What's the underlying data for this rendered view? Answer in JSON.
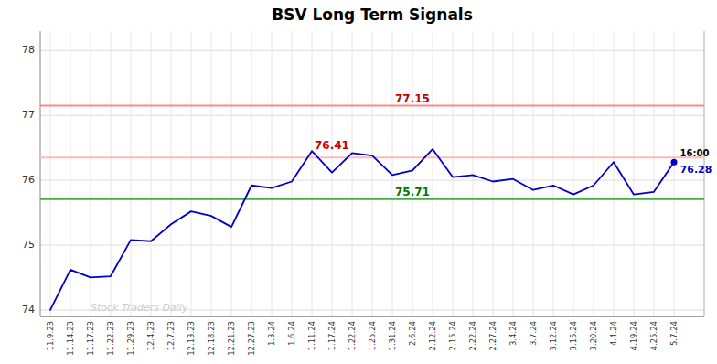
{
  "chart_data": {
    "type": "line",
    "title": "BSV Long Term Signals",
    "categories": [
      "11.9.23",
      "11.14.23",
      "11.17.23",
      "11.22.23",
      "11.29.23",
      "12.4.23",
      "12.7.23",
      "12.13.23",
      "12.18.23",
      "12.21.23",
      "12.27.23",
      "1.3.24",
      "1.6.24",
      "1.11.24",
      "1.17.24",
      "1.22.24",
      "1.25.24",
      "1.31.24",
      "2.6.24",
      "2.12.24",
      "2.15.24",
      "2.22.24",
      "2.27.24",
      "3.4.24",
      "3.7.24",
      "3.12.24",
      "3.15.24",
      "3.20.24",
      "4.4.24",
      "4.19.24",
      "4.25.24",
      "5.7.24"
    ],
    "values": [
      74.0,
      74.62,
      74.5,
      74.52,
      75.08,
      75.06,
      75.32,
      75.52,
      75.45,
      75.28,
      75.92,
      75.88,
      75.98,
      76.45,
      76.12,
      76.42,
      76.38,
      76.08,
      76.15,
      76.48,
      76.05,
      76.08,
      75.98,
      76.02,
      75.85,
      75.92,
      75.78,
      75.92,
      76.28,
      75.78,
      75.82,
      76.28
    ],
    "color": "#0000cc",
    "ylim": [
      73.9,
      78.3
    ],
    "yticks": [
      74,
      75,
      76,
      77,
      78
    ],
    "grid": true,
    "reference_lines": [
      {
        "value": 77.15,
        "color": "#ff8888"
      },
      {
        "value": 76.35,
        "color": "#ffbbbb"
      },
      {
        "value": 75.71,
        "color": "#44aa44"
      }
    ],
    "annotations": [
      {
        "text": "77.15",
        "x": "2.6.24",
        "y": 77.15,
        "color": "#cc0000"
      },
      {
        "text": "76.41",
        "x": "1.17.24",
        "y": 76.42,
        "color": "#cc0000"
      },
      {
        "text": "75.71",
        "x": "2.6.24",
        "y": 75.71,
        "color": "#007700"
      }
    ],
    "last_price": {
      "value": 76.28,
      "label": "76.28",
      "time": "16:00"
    },
    "watermark": "Stock Traders Daily",
    "watermark_color": "#cccccc"
  }
}
